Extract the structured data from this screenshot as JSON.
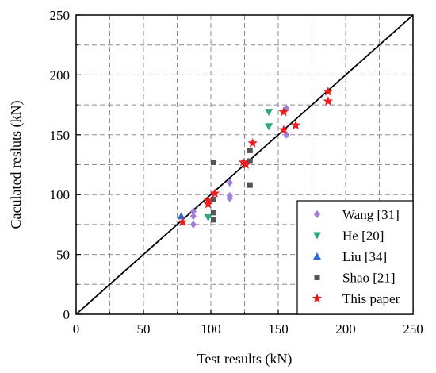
{
  "chart_data": {
    "type": "scatter",
    "xlabel": "Test results (kN)",
    "ylabel": "Caculated resluts (kN)",
    "xlim": [
      0,
      250
    ],
    "ylim": [
      0,
      250
    ],
    "xticks": [
      0,
      50,
      100,
      150,
      200,
      250
    ],
    "yticks": [
      0,
      50,
      100,
      150,
      200,
      250
    ],
    "xtick_labels": [
      "0",
      "50",
      "100",
      "150",
      "200",
      "250"
    ],
    "ytick_labels": [
      "0",
      "50",
      "100",
      "150",
      "200",
      "250"
    ],
    "grid": true,
    "legend_position": "bottom-right",
    "reference_line": {
      "x": [
        0,
        250
      ],
      "y": [
        0,
        250
      ],
      "color": "#000000"
    },
    "series": [
      {
        "name": "Wang [31]",
        "marker": "diamond",
        "color": "#a27fd6",
        "points": [
          [
            87,
            86
          ],
          [
            87,
            82
          ],
          [
            87,
            75
          ],
          [
            114,
            110
          ],
          [
            114,
            99
          ],
          [
            114,
            97
          ],
          [
            156,
            172
          ],
          [
            156,
            150
          ]
        ]
      },
      {
        "name": "He [20]",
        "marker": "triangle-down",
        "color": "#2aa876",
        "points": [
          [
            98,
            81
          ],
          [
            143,
            169
          ],
          [
            143,
            157
          ]
        ]
      },
      {
        "name": "Liu [34]",
        "marker": "triangle-up",
        "color": "#2a6cc7",
        "points": [
          [
            78,
            82
          ]
        ]
      },
      {
        "name": "Shao [21]",
        "marker": "square",
        "color": "#555555",
        "points": [
          [
            102,
            127
          ],
          [
            102,
            96
          ],
          [
            102,
            85
          ],
          [
            102,
            79
          ],
          [
            129,
            137
          ],
          [
            129,
            128
          ],
          [
            129,
            108
          ]
        ]
      },
      {
        "name": "This paper",
        "marker": "star",
        "color": "#ee1c1c",
        "points": [
          [
            79,
            77
          ],
          [
            98,
            95
          ],
          [
            98,
            92
          ],
          [
            103,
            101
          ],
          [
            124,
            127
          ],
          [
            126,
            125
          ],
          [
            131,
            143
          ],
          [
            154,
            169
          ],
          [
            154,
            154
          ],
          [
            163,
            158
          ],
          [
            187,
            186
          ],
          [
            187,
            178
          ]
        ]
      }
    ]
  }
}
